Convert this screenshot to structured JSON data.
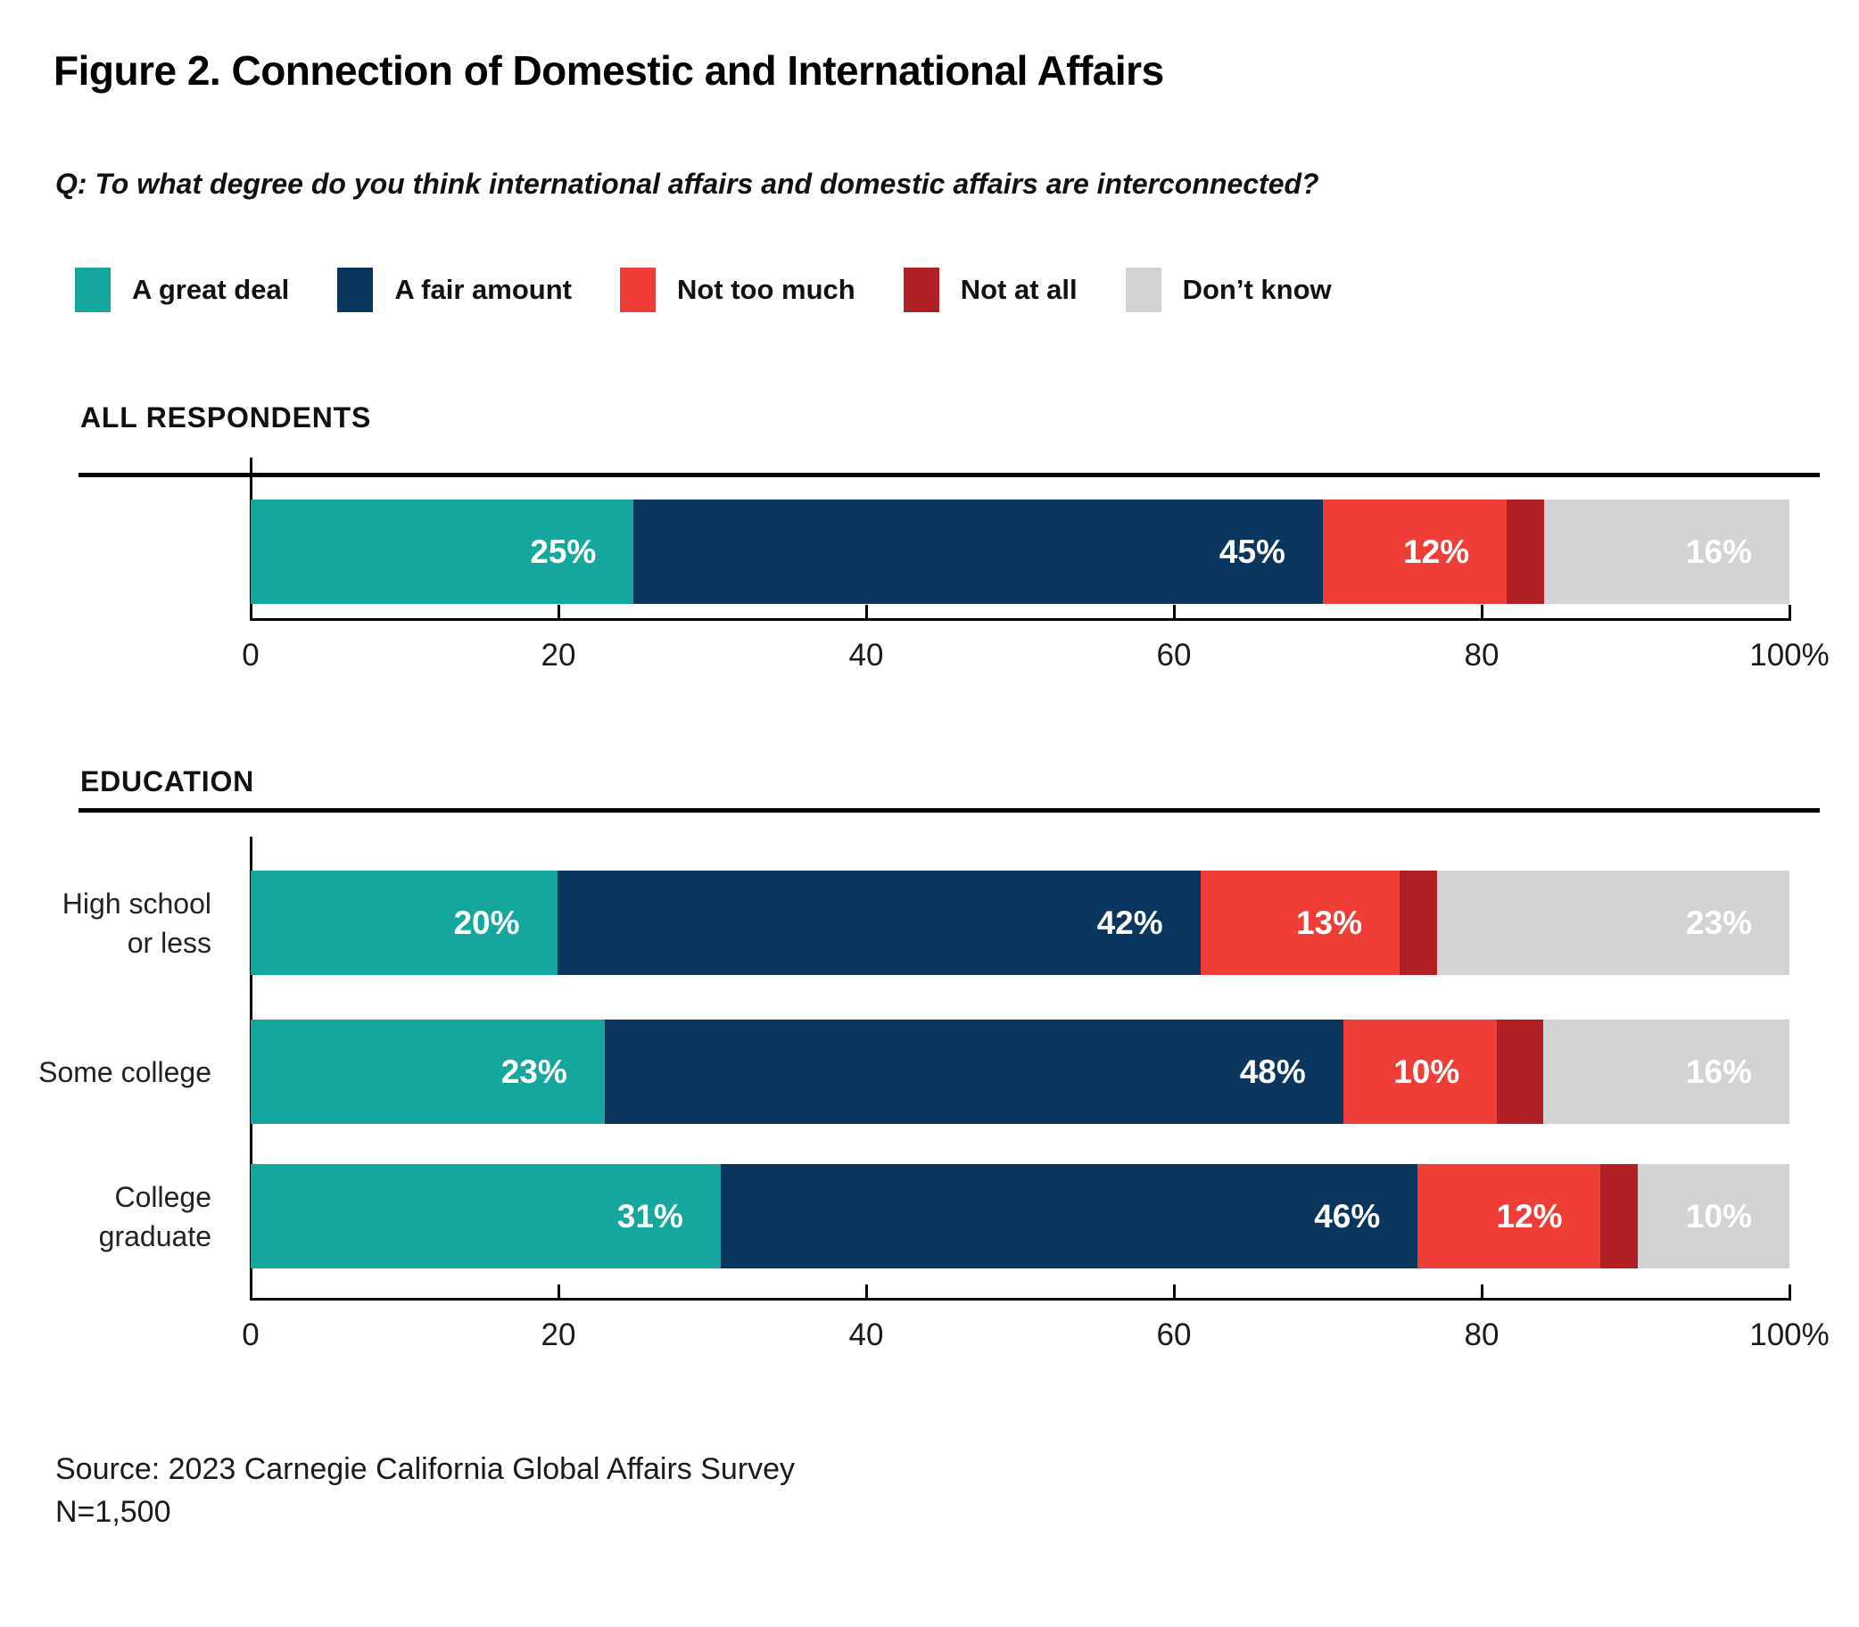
{
  "page": {
    "title": "Figure 2. Connection of Domestic and International Affairs",
    "question": "Q: To what degree do you think international affairs and domestic affairs are interconnected?",
    "source_line1": "Source: 2023 Carnegie California Global Affairs Survey",
    "source_line2": "N=1,500"
  },
  "legend": {
    "items": [
      {
        "label": "A great deal",
        "color": "#15A79E"
      },
      {
        "label": "A fair amount",
        "color": "#0A355E"
      },
      {
        "label": "Not too much",
        "color": "#EF3E37"
      },
      {
        "label": "Not at all",
        "color": "#AF2024"
      },
      {
        "label": "Don’t know",
        "color": "#D1D3D4"
      }
    ]
  },
  "chart_data": {
    "type": "bar",
    "orientation": "horizontal",
    "stacked": true,
    "title": "Figure 2. Connection of Domestic and International Affairs",
    "subtitle": "Q: To what degree do you think international affairs and domestic affairs are interconnected?",
    "legend_entries": [
      "A great deal",
      "A fair amount",
      "Not too much",
      "Not at all",
      "Don’t know"
    ],
    "legend_position": "top",
    "grid": false,
    "x_axis": {
      "range": [
        0,
        100
      ],
      "tick_values": [
        0,
        20,
        40,
        60,
        80,
        100
      ],
      "tick_labels": [
        "0",
        "20",
        "40",
        "60",
        "80",
        "100%"
      ]
    },
    "note": "Not at all values are unlabeled in the figure; estimated from bar widths so each row totals 100",
    "sections": [
      {
        "heading": "ALL RESPONDENTS",
        "rows": [
          {
            "category_lines": [],
            "segments": [
              {
                "series": "A great deal",
                "value": 25,
                "label": "25%"
              },
              {
                "series": "A fair amount",
                "value": 45,
                "label": "45%"
              },
              {
                "series": "Not too much",
                "value": 12,
                "label": "12%"
              },
              {
                "series": "Not at all",
                "value": 2,
                "label": ""
              },
              {
                "series": "Don’t know",
                "value": 16,
                "label": "16%"
              }
            ]
          }
        ]
      },
      {
        "heading": "EDUCATION",
        "rows": [
          {
            "category_lines": [
              "High school",
              "or less"
            ],
            "segments": [
              {
                "series": "A great deal",
                "value": 20,
                "label": "20%"
              },
              {
                "series": "A fair amount",
                "value": 42,
                "label": "42%"
              },
              {
                "series": "Not too much",
                "value": 13,
                "label": "13%"
              },
              {
                "series": "Not at all",
                "value": 2,
                "label": ""
              },
              {
                "series": "Don’t know",
                "value": 23,
                "label": "23%"
              }
            ]
          },
          {
            "category_lines": [
              "Some college"
            ],
            "segments": [
              {
                "series": "A great deal",
                "value": 23,
                "label": "23%"
              },
              {
                "series": "A fair amount",
                "value": 48,
                "label": "48%"
              },
              {
                "series": "Not too much",
                "value": 10,
                "label": "10%"
              },
              {
                "series": "Not at all",
                "value": 3,
                "label": ""
              },
              {
                "series": "Don’t know",
                "value": 16,
                "label": "16%"
              }
            ]
          },
          {
            "category_lines": [
              "College",
              "graduate"
            ],
            "segments": [
              {
                "series": "A great deal",
                "value": 31,
                "label": "31%"
              },
              {
                "series": "A fair amount",
                "value": 46,
                "label": "46%"
              },
              {
                "series": "Not too much",
                "value": 12,
                "label": "12%"
              },
              {
                "series": "Not at all",
                "value": 1,
                "label": ""
              },
              {
                "series": "Don’t know",
                "value": 10,
                "label": "10%"
              }
            ]
          }
        ]
      }
    ]
  }
}
